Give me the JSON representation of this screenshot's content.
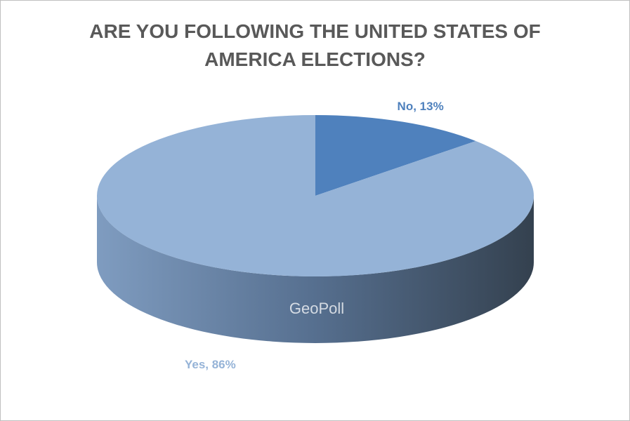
{
  "chart_data": {
    "type": "pie",
    "title": "ARE YOU FOLLOWING THE UNITED STATES OF AMERICA ELECTIONS?",
    "categories": [
      "No",
      "Yes"
    ],
    "values": [
      13,
      86
    ],
    "value_labels": [
      "No, 13%",
      "Yes, 86%"
    ],
    "colors": [
      "#4f81bd",
      "#95b3d7"
    ],
    "watermark": "GeoPoll"
  }
}
